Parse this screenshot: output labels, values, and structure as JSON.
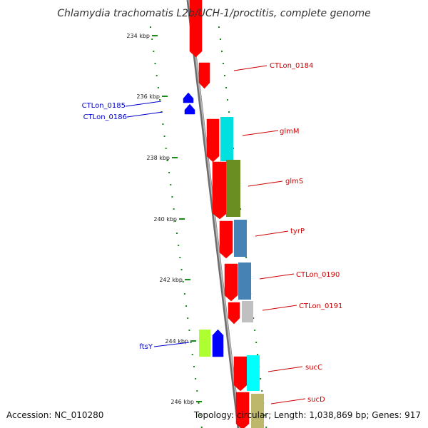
{
  "title": "Chlamydia trachomatis L2b/UCH-1/proctitis, complete genome",
  "footer": {
    "accession": "Accession: NC_010280",
    "summary": "Topology: circular; Length: 1,038,869 bp; Genes: 917"
  },
  "colors": {
    "backbone": "#8a8a8a",
    "tick": "#1a8a1a",
    "forward_strand": "#ff0000",
    "reverse_strand": "#0000ff",
    "forward_label": "#cc0000",
    "reverse_label": "#0000cc",
    "cog_cyan": "#00e0e0",
    "cog_olive": "#6b8e23",
    "cog_steelblue": "#4682b4",
    "cog_gray": "#c0c0c0",
    "cog_lime": "#adff2f",
    "cog_khaki": "#bdb76b"
  },
  "scale": {
    "unit": "kbp",
    "ticks": [
      {
        "label": "234 kbp"
      },
      {
        "label": "236 kbp"
      },
      {
        "label": "238 kbp"
      },
      {
        "label": "240 kbp"
      },
      {
        "label": "242 kbp"
      },
      {
        "label": "244 kbp"
      },
      {
        "label": "246 kbp"
      }
    ]
  },
  "genes": [
    {
      "label": "",
      "strand": "forward",
      "cog_color": ""
    },
    {
      "label": "CTLon_0184",
      "strand": "forward",
      "cog_color": ""
    },
    {
      "label": "CTLon_0185",
      "strand": "reverse",
      "cog_color": ""
    },
    {
      "label": "CTLon_0186",
      "strand": "reverse",
      "cog_color": ""
    },
    {
      "label": "glmM",
      "strand": "forward",
      "cog_color": "#00e0e0"
    },
    {
      "label": "glmS",
      "strand": "forward",
      "cog_color": "#6b8e23"
    },
    {
      "label": "tyrP",
      "strand": "forward",
      "cog_color": "#4682b4"
    },
    {
      "label": "CTLon_0190",
      "strand": "forward",
      "cog_color": "#4682b4"
    },
    {
      "label": "CTLon_0191",
      "strand": "forward",
      "cog_color": "#c0c0c0"
    },
    {
      "label": "ftsY",
      "strand": "reverse",
      "cog_color": "#adff2f"
    },
    {
      "label": "sucC",
      "strand": "forward",
      "cog_color": "#00ffff"
    },
    {
      "label": "sucD",
      "strand": "forward",
      "cog_color": "#bdb76b"
    }
  ]
}
